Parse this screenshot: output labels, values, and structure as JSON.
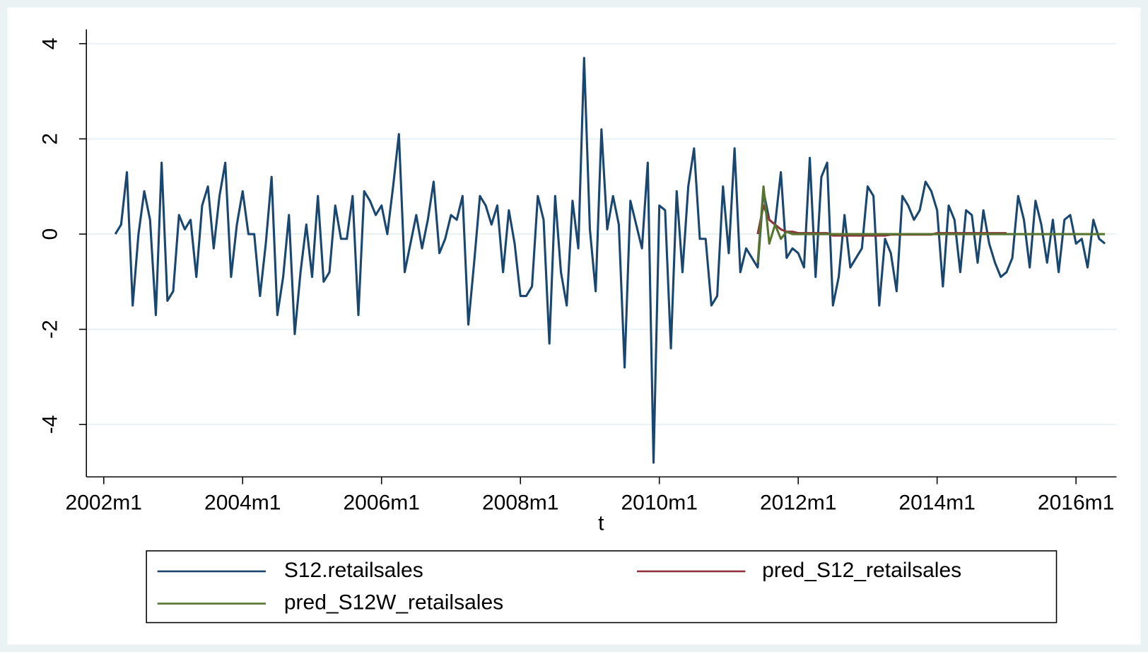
{
  "chart_data": {
    "type": "line",
    "x_label": "t",
    "xlim": [
      "2001m10",
      "2016m8"
    ],
    "xticks": [
      "2002m1",
      "2004m1",
      "2006m1",
      "2008m1",
      "2010m1",
      "2012m1",
      "2014m1",
      "2016m1"
    ],
    "ylim": [
      -5.1,
      4.3
    ],
    "yticks": [
      -4,
      -2,
      0,
      2,
      4
    ],
    "grid": true,
    "series": [
      {
        "name": "S12.retailsales",
        "color": "#1a476f",
        "x": [
          "2002m3",
          "2002m4",
          "2002m5",
          "2002m6",
          "2002m7",
          "2002m8",
          "2002m9",
          "2002m10",
          "2002m11",
          "2002m12",
          "2003m1",
          "2003m2",
          "2003m3",
          "2003m4",
          "2003m5",
          "2003m6",
          "2003m7",
          "2003m8",
          "2003m9",
          "2003m10",
          "2003m11",
          "2003m12",
          "2004m1",
          "2004m2",
          "2004m3",
          "2004m4",
          "2004m5",
          "2004m6",
          "2004m7",
          "2004m8",
          "2004m9",
          "2004m10",
          "2004m11",
          "2004m12",
          "2005m1",
          "2005m2",
          "2005m3",
          "2005m4",
          "2005m5",
          "2005m6",
          "2005m7",
          "2005m8",
          "2005m9",
          "2005m10",
          "2005m11",
          "2005m12",
          "2006m1",
          "2006m2",
          "2006m3",
          "2006m4",
          "2006m5",
          "2006m6",
          "2006m7",
          "2006m8",
          "2006m9",
          "2006m10",
          "2006m11",
          "2006m12",
          "2007m1",
          "2007m2",
          "2007m3",
          "2007m4",
          "2007m5",
          "2007m6",
          "2007m7",
          "2007m8",
          "2007m9",
          "2007m10",
          "2007m11",
          "2007m12",
          "2008m1",
          "2008m2",
          "2008m3",
          "2008m4",
          "2008m5",
          "2008m6",
          "2008m7",
          "2008m8",
          "2008m9",
          "2008m10",
          "2008m11",
          "2008m12",
          "2009m1",
          "2009m2",
          "2009m3",
          "2009m4",
          "2009m5",
          "2009m6",
          "2009m7",
          "2009m8",
          "2009m9",
          "2009m10",
          "2009m11",
          "2009m12",
          "2010m1",
          "2010m2",
          "2010m3",
          "2010m4",
          "2010m5",
          "2010m6",
          "2010m7",
          "2010m8",
          "2010m9",
          "2010m10",
          "2010m11",
          "2010m12",
          "2011m1",
          "2011m2",
          "2011m3",
          "2011m4",
          "2011m5",
          "2011m6",
          "2011m7",
          "2011m8",
          "2011m9",
          "2011m10",
          "2011m11",
          "2011m12",
          "2012m1",
          "2012m2",
          "2012m3",
          "2012m4",
          "2012m5",
          "2012m6",
          "2012m7",
          "2012m8",
          "2012m9",
          "2012m10",
          "2012m11",
          "2012m12",
          "2013m1",
          "2013m2",
          "2013m3",
          "2013m4",
          "2013m5",
          "2013m6",
          "2013m7",
          "2013m8",
          "2013m9",
          "2013m10",
          "2013m11",
          "2013m12",
          "2014m1",
          "2014m2",
          "2014m3",
          "2014m4",
          "2014m5",
          "2014m6",
          "2014m7",
          "2014m8",
          "2014m9",
          "2014m10",
          "2014m11",
          "2014m12",
          "2015m1",
          "2015m2",
          "2015m3",
          "2015m4",
          "2015m5",
          "2015m6",
          "2015m7",
          "2015m8",
          "2015m9",
          "2015m10",
          "2015m11",
          "2015m12",
          "2016m1",
          "2016m2",
          "2016m3",
          "2016m4",
          "2016m5",
          "2016m6"
        ],
        "values": [
          0,
          0.2,
          1.3,
          -1.5,
          0,
          0.9,
          0.3,
          -1.7,
          1.5,
          -1.4,
          -1.2,
          0.4,
          0.1,
          0.3,
          -0.9,
          0.6,
          1.0,
          -0.3,
          0.8,
          1.5,
          -0.9,
          0.2,
          0.9,
          0,
          0,
          -1.3,
          -0.2,
          1.2,
          -1.7,
          -0.9,
          0.4,
          -2.1,
          -0.8,
          0.2,
          -0.9,
          0.8,
          -1.0,
          -0.8,
          0.6,
          -0.1,
          -0.1,
          0.8,
          -1.7,
          0.9,
          0.7,
          0.4,
          0.6,
          0,
          1.0,
          2.1,
          -0.8,
          -0.2,
          0.4,
          -0.3,
          0.3,
          1.1,
          -0.4,
          -0.1,
          0.4,
          0.3,
          0.8,
          -1.9,
          -0.6,
          0.8,
          0.6,
          0.2,
          0.6,
          -0.8,
          0.5,
          -0.2,
          -1.3,
          -1.3,
          -1.1,
          0.8,
          0.3,
          -2.3,
          0.8,
          -0.8,
          -1.5,
          0.7,
          -0.3,
          3.7,
          0.1,
          -1.2,
          2.2,
          0.1,
          0.8,
          0.2,
          -2.8,
          0.7,
          0.2,
          -0.3,
          1.5,
          -4.8,
          0.6,
          0.5,
          -2.4,
          0.9,
          -0.8,
          1.0,
          1.8,
          -0.1,
          -0.1,
          -1.5,
          -1.3,
          1.0,
          -0.4,
          1.8,
          -0.8,
          -0.3,
          -0.5,
          -0.7,
          0.9,
          0.3,
          0.2,
          1.3,
          -0.5,
          -0.3,
          -0.4,
          -0.7,
          1.6,
          -0.9,
          1.2,
          1.5,
          -1.5,
          -0.9,
          0.4,
          -0.7,
          -0.5,
          -0.3,
          1.0,
          0.8,
          -1.5,
          -0.1,
          -0.4,
          -1.2,
          0.8,
          0.6,
          0.3,
          0.5,
          1.1,
          0.9,
          0.5,
          -1.1,
          0.6,
          0.3,
          -0.8,
          0.5,
          0.4,
          -0.6,
          0.5,
          -0.2,
          -0.6,
          -0.9,
          -0.8,
          -0.5,
          0.8,
          0.3,
          -0.7,
          0.7,
          0.2,
          -0.6,
          0.3,
          -0.8,
          0.3,
          0.4,
          -0.2,
          -0.1,
          -0.7,
          0.3,
          -0.1,
          -0.2
        ]
      },
      {
        "name": "pred_S12_retailsales",
        "color": "#90353b",
        "x": [
          "2011m6",
          "2011m7",
          "2011m8",
          "2011m9",
          "2011m10",
          "2011m11",
          "2011m12",
          "2012m1",
          "2012m2",
          "2012m3",
          "2012m4",
          "2012m5",
          "2012m6",
          "2012m7",
          "2012m8",
          "2012m9",
          "2012m10",
          "2012m11",
          "2012m12",
          "2013m1",
          "2013m2",
          "2013m3",
          "2013m4",
          "2013m5",
          "2013m6",
          "2013m7",
          "2013m8",
          "2013m9",
          "2013m10",
          "2013m11",
          "2013m12",
          "2014m1",
          "2014m2",
          "2014m3",
          "2014m4",
          "2014m5",
          "2014m6",
          "2014m7",
          "2014m8",
          "2014m9",
          "2014m10",
          "2014m11",
          "2014m12",
          "2015m1"
        ],
        "values": [
          0,
          0.6,
          0.3,
          0.2,
          0.1,
          0.05,
          0.05,
          0.02,
          0.02,
          0.02,
          0.02,
          0.02,
          0.02,
          -0.03,
          -0.03,
          -0.03,
          -0.03,
          -0.03,
          -0.03,
          -0.03,
          -0.03,
          -0.03,
          -0.03,
          -0.01,
          -0.01,
          -0.01,
          -0.01,
          -0.01,
          -0.01,
          -0.01,
          -0.01,
          0.02,
          0.02,
          0.02,
          0.02,
          0.02,
          0.02,
          0.02,
          0.02,
          0.02,
          0.02,
          0.02,
          0.02,
          0.02
        ]
      },
      {
        "name": "pred_S12W_retailsales",
        "color": "#55752f",
        "x": [
          "2011m6",
          "2011m7",
          "2011m8",
          "2011m9",
          "2011m10",
          "2011m11",
          "2011m12",
          "2012m1",
          "2012m2",
          "2012m3",
          "2012m4",
          "2012m5",
          "2012m6",
          "2012m7",
          "2012m8",
          "2012m9",
          "2012m10",
          "2012m11",
          "2012m12",
          "2013m1",
          "2013m2",
          "2013m3",
          "2013m4",
          "2013m5",
          "2013m6",
          "2013m7",
          "2013m8",
          "2013m9",
          "2013m10",
          "2013m11",
          "2013m12",
          "2014m1",
          "2014m2",
          "2014m3",
          "2014m4",
          "2014m5",
          "2014m6",
          "2014m7",
          "2014m8",
          "2014m9",
          "2014m10",
          "2014m11",
          "2014m12",
          "2015m1",
          "2015m2",
          "2015m3",
          "2015m4",
          "2015m5",
          "2015m6",
          "2015m7",
          "2015m8",
          "2015m9",
          "2015m10",
          "2015m11",
          "2015m12",
          "2016m1",
          "2016m2",
          "2016m3",
          "2016m4",
          "2016m5",
          "2016m6"
        ],
        "values": [
          -0.6,
          1.0,
          -0.2,
          0.2,
          -0.1,
          0.05,
          0,
          0,
          0,
          0,
          0,
          0,
          0,
          0,
          0,
          0,
          0,
          0,
          0,
          0,
          0,
          0,
          0,
          0,
          0,
          0,
          0,
          0,
          0,
          0,
          0,
          0,
          0,
          0,
          0,
          0,
          0,
          0,
          0,
          0,
          0,
          0,
          0,
          0,
          0,
          0,
          0,
          0,
          0,
          0,
          0,
          0,
          0,
          0,
          0,
          0,
          0,
          0,
          0,
          0,
          0
        ]
      }
    ]
  }
}
